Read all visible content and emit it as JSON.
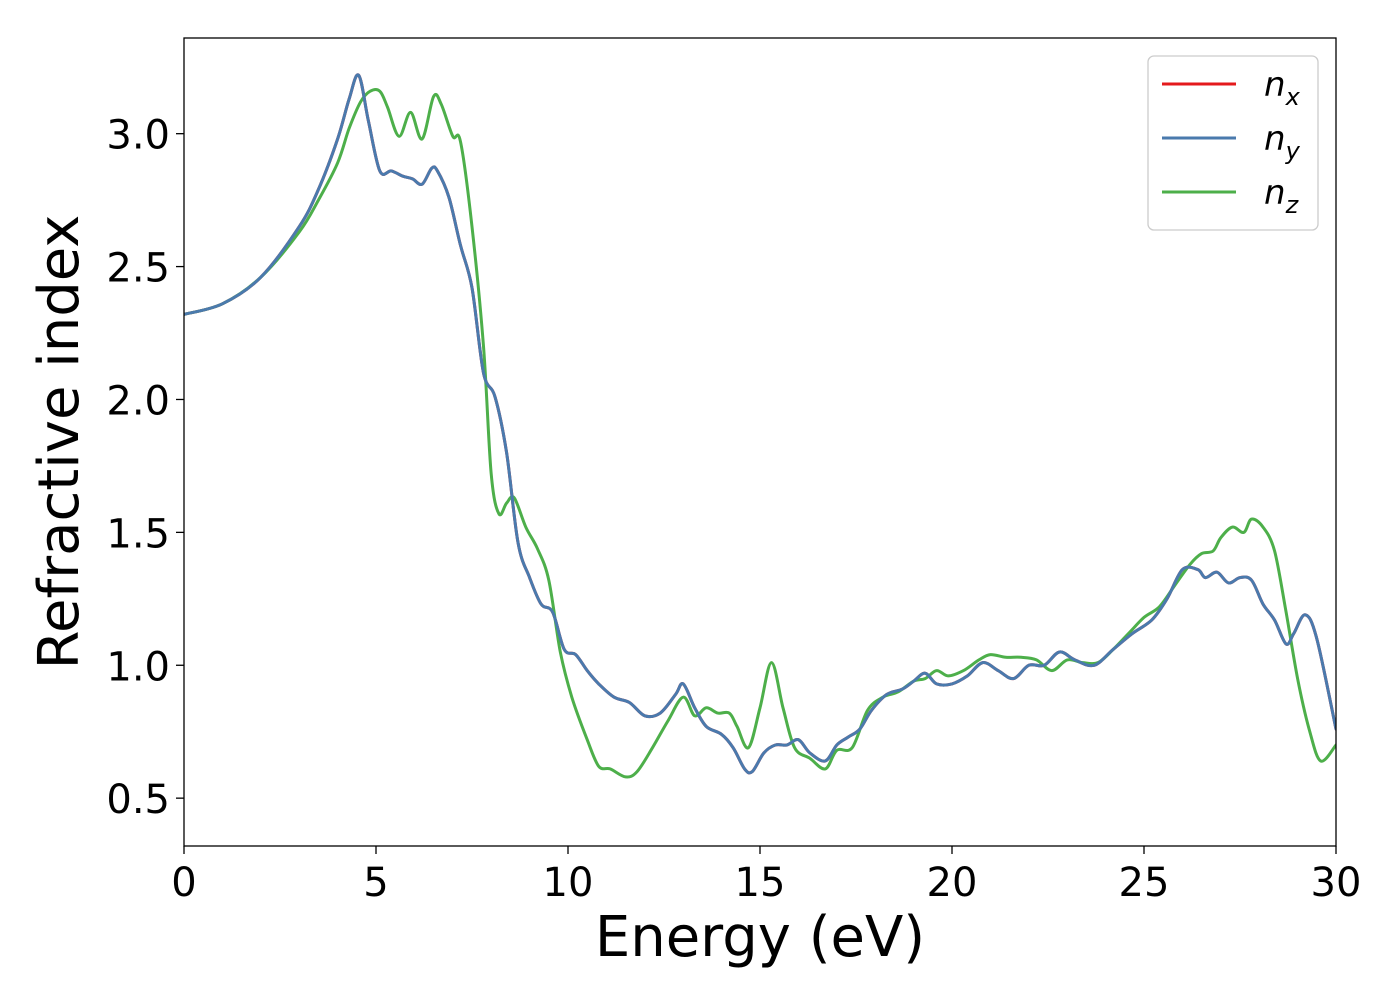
{
  "chart_data": {
    "type": "line",
    "title": "",
    "xlabel": "Energy (eV)",
    "ylabel": "Refractive index",
    "xlim": [
      0,
      30
    ],
    "ylim": [
      0.32,
      3.36
    ],
    "x_ticks": [
      0,
      5,
      10,
      15,
      20,
      25,
      30
    ],
    "x_tick_labels": [
      "0",
      "5",
      "10",
      "15",
      "20",
      "25",
      "30"
    ],
    "y_ticks": [
      0.5,
      1.0,
      1.5,
      2.0,
      2.5,
      3.0
    ],
    "y_tick_labels": [
      "0.5",
      "1.0",
      "1.5",
      "2.0",
      "2.5",
      "3.0"
    ],
    "grid": false,
    "legend_position": "top-right",
    "series": [
      {
        "name": "n_x",
        "legend_base": "n",
        "legend_sub": "x",
        "color": "#e41a1c",
        "x": [
          0,
          1,
          2,
          3,
          3.5,
          4,
          4.3,
          4.55,
          4.8,
          5.1,
          5.4,
          5.7,
          5.95,
          6.2,
          6.45,
          6.6,
          6.9,
          7.2,
          7.5,
          7.8,
          8.1,
          8.4,
          8.7,
          9.0,
          9.3,
          9.6,
          9.9,
          10.2,
          10.5,
          10.8,
          11.2,
          11.6,
          12.0,
          12.4,
          12.8,
          13.0,
          13.3,
          13.6,
          14.0,
          14.3,
          14.6,
          14.8,
          15.1,
          15.4,
          15.7,
          16.0,
          16.3,
          16.7,
          17.0,
          17.3,
          17.6,
          17.9,
          18.3,
          18.7,
          19.0,
          19.3,
          19.6,
          20.0,
          20.4,
          20.8,
          21.2,
          21.6,
          22.0,
          22.4,
          22.8,
          23.2,
          23.7,
          24.2,
          24.7,
          25.2,
          25.6,
          26.0,
          26.4,
          26.6,
          26.9,
          27.2,
          27.5,
          27.8,
          28.1,
          28.4,
          28.7,
          28.9,
          29.2,
          29.5,
          30.0
        ],
        "y": [
          2.32,
          2.36,
          2.46,
          2.65,
          2.79,
          2.98,
          3.13,
          3.22,
          3.05,
          2.86,
          2.86,
          2.84,
          2.83,
          2.81,
          2.87,
          2.86,
          2.76,
          2.58,
          2.42,
          2.1,
          2.01,
          1.8,
          1.46,
          1.33,
          1.23,
          1.2,
          1.06,
          1.04,
          0.98,
          0.93,
          0.88,
          0.86,
          0.81,
          0.82,
          0.89,
          0.93,
          0.84,
          0.77,
          0.74,
          0.69,
          0.61,
          0.6,
          0.67,
          0.7,
          0.7,
          0.72,
          0.67,
          0.64,
          0.7,
          0.73,
          0.76,
          0.83,
          0.89,
          0.91,
          0.94,
          0.97,
          0.93,
          0.93,
          0.96,
          1.01,
          0.98,
          0.95,
          1.0,
          1.0,
          1.05,
          1.02,
          1.0,
          1.06,
          1.12,
          1.17,
          1.25,
          1.36,
          1.36,
          1.33,
          1.35,
          1.31,
          1.33,
          1.32,
          1.23,
          1.17,
          1.08,
          1.12,
          1.19,
          1.1,
          0.76
        ]
      },
      {
        "name": "n_y",
        "legend_base": "n",
        "legend_sub": "y",
        "color": "#4a7aad",
        "x": [
          0,
          1,
          2,
          3,
          3.5,
          4,
          4.3,
          4.55,
          4.8,
          5.1,
          5.4,
          5.7,
          5.95,
          6.2,
          6.45,
          6.6,
          6.9,
          7.2,
          7.5,
          7.8,
          8.1,
          8.4,
          8.7,
          9.0,
          9.3,
          9.6,
          9.9,
          10.2,
          10.5,
          10.8,
          11.2,
          11.6,
          12.0,
          12.4,
          12.8,
          13.0,
          13.3,
          13.6,
          14.0,
          14.3,
          14.6,
          14.8,
          15.1,
          15.4,
          15.7,
          16.0,
          16.3,
          16.7,
          17.0,
          17.3,
          17.6,
          17.9,
          18.3,
          18.7,
          19.0,
          19.3,
          19.6,
          20.0,
          20.4,
          20.8,
          21.2,
          21.6,
          22.0,
          22.4,
          22.8,
          23.2,
          23.7,
          24.2,
          24.7,
          25.2,
          25.6,
          26.0,
          26.4,
          26.6,
          26.9,
          27.2,
          27.5,
          27.8,
          28.1,
          28.4,
          28.7,
          28.9,
          29.2,
          29.5,
          30.0
        ],
        "y": [
          2.32,
          2.36,
          2.46,
          2.65,
          2.79,
          2.98,
          3.13,
          3.22,
          3.05,
          2.86,
          2.86,
          2.84,
          2.83,
          2.81,
          2.87,
          2.86,
          2.76,
          2.58,
          2.42,
          2.1,
          2.01,
          1.8,
          1.46,
          1.33,
          1.23,
          1.2,
          1.06,
          1.04,
          0.98,
          0.93,
          0.88,
          0.86,
          0.81,
          0.82,
          0.89,
          0.93,
          0.84,
          0.77,
          0.74,
          0.69,
          0.61,
          0.6,
          0.67,
          0.7,
          0.7,
          0.72,
          0.67,
          0.64,
          0.7,
          0.73,
          0.76,
          0.83,
          0.89,
          0.91,
          0.94,
          0.97,
          0.93,
          0.93,
          0.96,
          1.01,
          0.98,
          0.95,
          1.0,
          1.0,
          1.05,
          1.02,
          1.0,
          1.06,
          1.12,
          1.17,
          1.25,
          1.36,
          1.36,
          1.33,
          1.35,
          1.31,
          1.33,
          1.32,
          1.23,
          1.17,
          1.08,
          1.12,
          1.19,
          1.1,
          0.76
        ]
      },
      {
        "name": "n_z",
        "legend_base": "n",
        "legend_sub": "z",
        "color": "#4daf4a",
        "x": [
          0,
          1,
          2,
          3,
          3.5,
          4,
          4.3,
          4.6,
          4.85,
          5.1,
          5.3,
          5.6,
          5.9,
          6.2,
          6.5,
          6.7,
          7.0,
          7.2,
          7.5,
          7.8,
          8.0,
          8.2,
          8.4,
          8.6,
          8.9,
          9.2,
          9.5,
          9.8,
          10.1,
          10.5,
          10.8,
          11.1,
          11.5,
          11.8,
          12.2,
          12.6,
          13.0,
          13.3,
          13.6,
          13.9,
          14.2,
          14.4,
          14.7,
          15.0,
          15.3,
          15.6,
          15.9,
          16.3,
          16.7,
          17.0,
          17.4,
          17.8,
          18.2,
          18.6,
          19.0,
          19.3,
          19.6,
          19.9,
          20.3,
          20.7,
          21.0,
          21.4,
          21.8,
          22.2,
          22.6,
          23.0,
          23.4,
          23.8,
          24.2,
          24.6,
          25.0,
          25.4,
          25.8,
          26.2,
          26.5,
          26.8,
          27.0,
          27.3,
          27.6,
          27.8,
          28.1,
          28.4,
          28.7,
          29.0,
          29.3,
          29.6,
          30.0
        ],
        "y": [
          2.32,
          2.36,
          2.46,
          2.63,
          2.75,
          2.89,
          3.02,
          3.12,
          3.16,
          3.16,
          3.1,
          2.99,
          3.08,
          2.98,
          3.14,
          3.11,
          2.99,
          2.97,
          2.65,
          2.2,
          1.72,
          1.57,
          1.61,
          1.63,
          1.52,
          1.44,
          1.32,
          1.05,
          0.88,
          0.72,
          0.62,
          0.61,
          0.58,
          0.6,
          0.69,
          0.79,
          0.88,
          0.81,
          0.84,
          0.82,
          0.82,
          0.77,
          0.69,
          0.84,
          1.01,
          0.84,
          0.69,
          0.65,
          0.61,
          0.68,
          0.69,
          0.83,
          0.88,
          0.9,
          0.94,
          0.95,
          0.98,
          0.96,
          0.98,
          1.02,
          1.04,
          1.03,
          1.03,
          1.02,
          0.98,
          1.02,
          1.01,
          1.01,
          1.06,
          1.12,
          1.18,
          1.22,
          1.3,
          1.38,
          1.42,
          1.43,
          1.48,
          1.52,
          1.5,
          1.55,
          1.52,
          1.43,
          1.2,
          0.95,
          0.76,
          0.64,
          0.7
        ]
      }
    ]
  }
}
